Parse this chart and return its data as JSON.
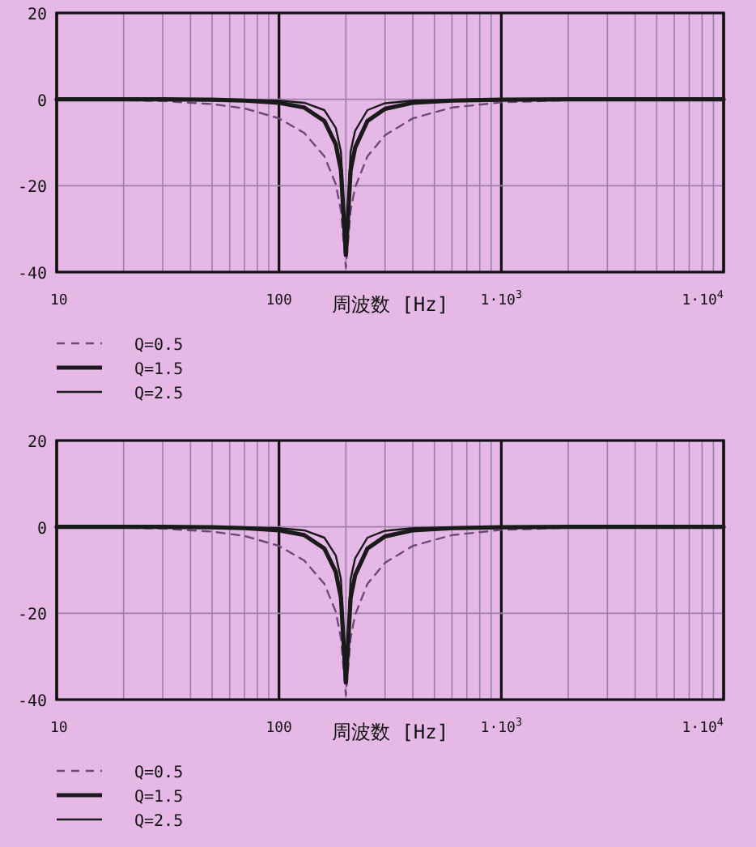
{
  "chart_data": [
    {
      "type": "line",
      "xlabel": "周波数 [Hz]",
      "log": "x",
      "grid": true,
      "legend": "bottom left",
      "xlim": [
        10,
        10000
      ],
      "ylim": [
        -40,
        20
      ],
      "xticks": [
        {
          "value": 10,
          "label": "10"
        },
        {
          "value": 100,
          "label": "100"
        },
        {
          "value": 1000,
          "label": "1·10$^{3}$"
        },
        {
          "value": 10000,
          "label": "1·10$^{4}$"
        }
      ],
      "yticks": [
        20,
        0,
        -20,
        -40
      ],
      "x": [
        10,
        20,
        30,
        50,
        70,
        100,
        130,
        160,
        180,
        190,
        200,
        210,
        220,
        250,
        300,
        400,
        600,
        1000,
        2000,
        5000,
        10000
      ],
      "series": [
        {
          "name": "Q=0.5",
          "color": "#6a4a7a",
          "line_style": "dashed",
          "values": [
            0,
            -0.2,
            -0.4,
            -1.1,
            -2.1,
            -4.4,
            -7.8,
            -13.2,
            -19.6,
            -25.8,
            -39,
            -25.8,
            -20.4,
            -13.2,
            -8.3,
            -4.4,
            -1.9,
            -0.7,
            -0.2,
            0,
            0
          ]
        },
        {
          "name": "Q=1.5",
          "color": "#1a1a1a",
          "line_style": "solid",
          "values": [
            0,
            0,
            0,
            -0.1,
            -0.3,
            -0.8,
            -1.9,
            -5,
            -10.4,
            -16.4,
            -36,
            -16.4,
            -11.2,
            -5,
            -2.2,
            -0.8,
            -0.3,
            -0.1,
            0,
            0,
            0
          ]
        },
        {
          "name": "Q=2.5",
          "color": "#1a1a1a",
          "line_style": "solid",
          "values": [
            0,
            0,
            0,
            0,
            -0.1,
            -0.3,
            -0.8,
            -2.5,
            -6.6,
            -12.1,
            -35,
            -12.1,
            -7.3,
            -2.5,
            -0.9,
            -0.3,
            -0.1,
            0,
            0,
            0,
            0
          ]
        }
      ]
    },
    {
      "type": "line",
      "xlabel": "周波数 [Hz]",
      "log": "x",
      "grid": true,
      "legend": "bottom left",
      "xlim": [
        10,
        10000
      ],
      "ylim": [
        -40,
        20
      ],
      "xticks": [
        {
          "value": 10,
          "label": "10"
        },
        {
          "value": 100,
          "label": "100"
        },
        {
          "value": 1000,
          "label": "1·10$^{3}$"
        },
        {
          "value": 10000,
          "label": "1·10$^{4}$"
        }
      ],
      "yticks": [
        20,
        0,
        -20,
        -40
      ],
      "x": [
        10,
        20,
        30,
        50,
        70,
        100,
        130,
        160,
        180,
        190,
        200,
        210,
        220,
        250,
        300,
        400,
        600,
        1000,
        2000,
        5000,
        10000
      ],
      "series": [
        {
          "name": "Q=0.5",
          "color": "#6a4a7a",
          "line_style": "dashed",
          "values": [
            0,
            -0.2,
            -0.4,
            -1.1,
            -2.1,
            -4.4,
            -7.8,
            -13.2,
            -19.6,
            -25.8,
            -39,
            -25.8,
            -20.4,
            -13.2,
            -8.3,
            -4.4,
            -1.9,
            -0.7,
            -0.2,
            0,
            0
          ]
        },
        {
          "name": "Q=1.5",
          "color": "#1a1a1a",
          "line_style": "solid",
          "values": [
            0,
            0,
            0,
            -0.1,
            -0.3,
            -0.8,
            -1.9,
            -5,
            -10.4,
            -16.4,
            -36,
            -16.4,
            -11.2,
            -5,
            -2.2,
            -0.8,
            -0.3,
            -0.1,
            0,
            0,
            0
          ]
        },
        {
          "name": "Q=2.5",
          "color": "#1a1a1a",
          "line_style": "solid",
          "values": [
            0,
            0,
            0,
            0,
            -0.1,
            -0.3,
            -0.8,
            -2.5,
            -6.6,
            -12.1,
            -35,
            -12.1,
            -7.3,
            -2.5,
            -0.9,
            -0.3,
            -0.1,
            0,
            0,
            0,
            0
          ]
        }
      ]
    }
  ]
}
